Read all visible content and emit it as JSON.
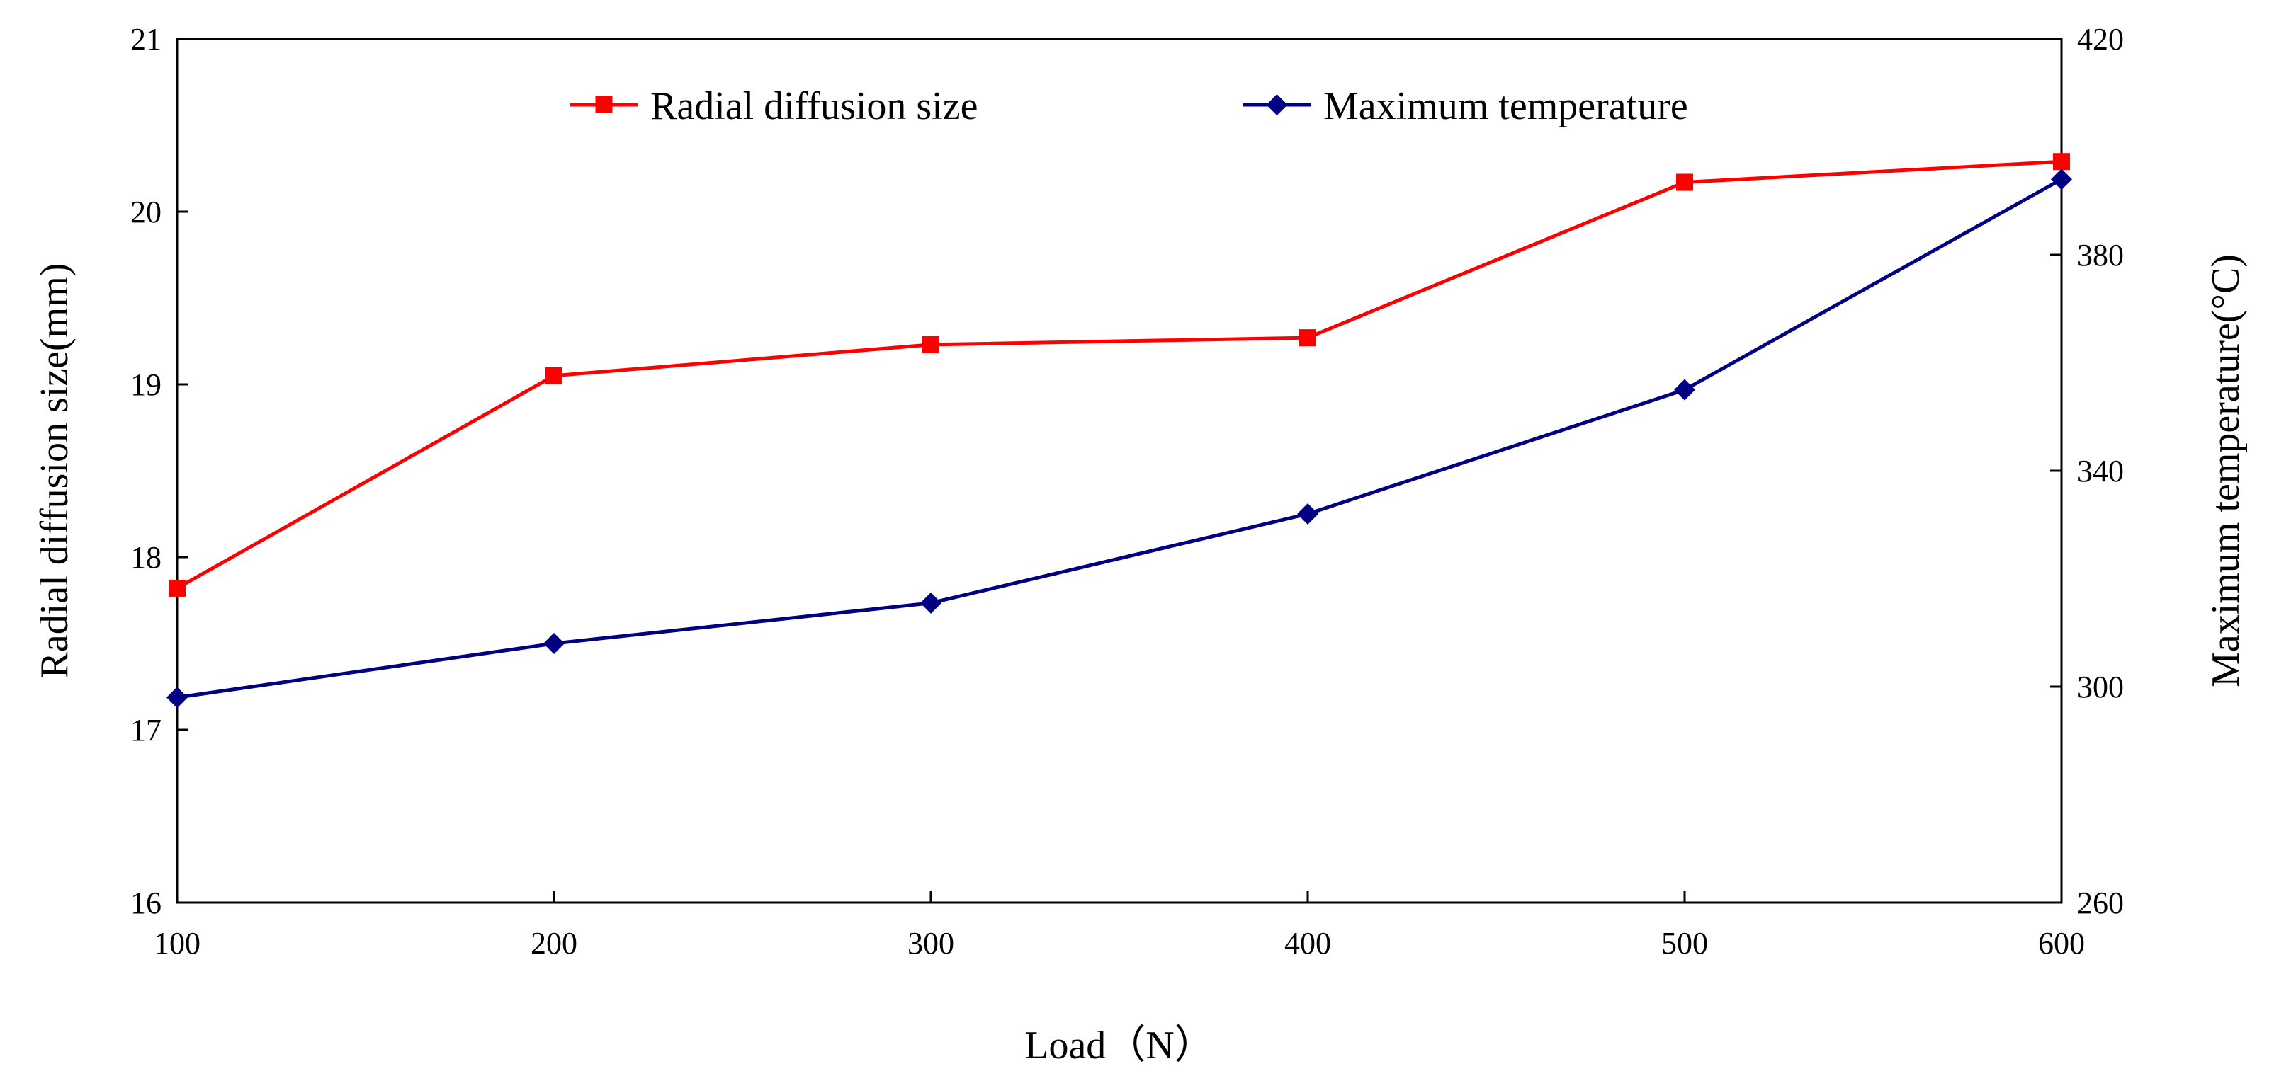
{
  "chart_data": {
    "type": "line",
    "title": "",
    "xlabel": "Load（N）",
    "ylabel_left": "Radial diffusion size(mm)",
    "ylabel_right": "Maximum temperature(°C)",
    "x": [
      100,
      200,
      300,
      400,
      500,
      600
    ],
    "xlim": [
      100,
      600
    ],
    "x_ticks": [
      "100",
      "200",
      "300",
      "400",
      "500",
      "600"
    ],
    "ylim_left": [
      16,
      21
    ],
    "y_ticks_left": [
      "16",
      "17",
      "18",
      "19",
      "20",
      "21"
    ],
    "ylim_right": [
      260,
      420
    ],
    "y_ticks_right": [
      "260",
      "300",
      "340",
      "380",
      "420"
    ],
    "grid": false,
    "legend_placement": "top-center",
    "series": [
      {
        "name": "Radial diffusion size",
        "axis": "left",
        "color": "#ff0000",
        "marker": "square",
        "values": [
          17.82,
          19.05,
          19.23,
          19.27,
          20.17,
          20.29
        ]
      },
      {
        "name": "Maximum temperature",
        "axis": "right",
        "color": "#000080",
        "marker": "diamond",
        "values": [
          298,
          308,
          315.5,
          332,
          355,
          394
        ]
      }
    ]
  }
}
